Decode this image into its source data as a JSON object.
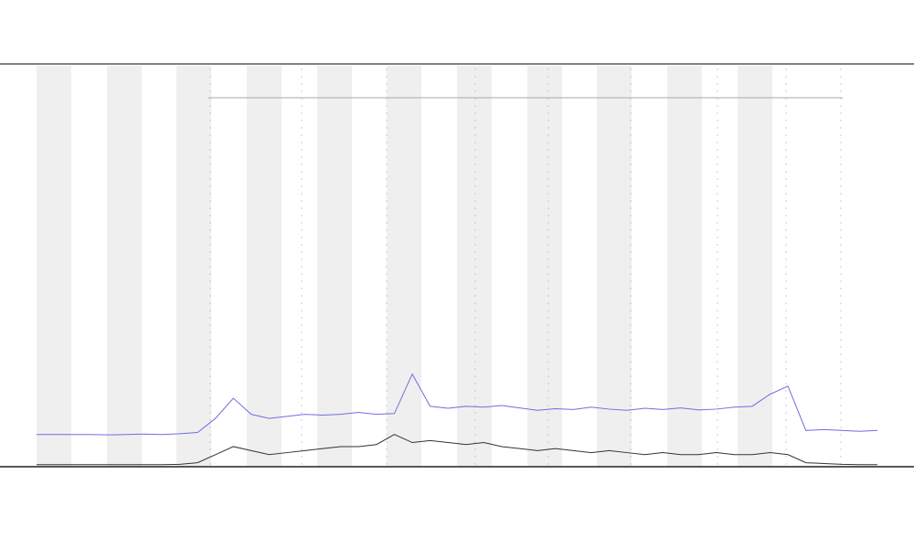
{
  "chart_data": {
    "type": "line",
    "x": [
      0,
      1,
      2,
      3,
      4,
      5,
      6,
      7,
      8,
      9,
      10,
      11,
      12,
      13,
      14,
      15,
      16,
      17,
      18,
      19,
      20,
      21,
      22,
      23,
      24,
      25,
      26,
      27,
      28,
      29,
      30,
      31,
      32,
      33,
      34,
      35,
      36,
      37,
      38,
      39,
      40,
      41,
      42,
      43,
      44,
      45,
      46,
      47
    ],
    "xlim": [
      0,
      47
    ],
    "ylim": [
      0,
      100
    ],
    "series": [
      {
        "color": "#6f6fe0",
        "values": [
          8,
          8,
          8,
          8,
          7.9,
          8,
          8.1,
          8,
          8.2,
          8.5,
          12,
          17,
          13,
          12,
          12.5,
          13,
          12.8,
          13,
          13.5,
          13,
          13.2,
          23,
          15,
          14.5,
          15,
          14.8,
          15.2,
          14.6,
          14,
          14.4,
          14.2,
          14.8,
          14.3,
          14,
          14.5,
          14.2,
          14.6,
          14.1,
          14.3,
          14.8,
          15,
          18,
          20,
          9,
          9.2,
          9,
          8.8,
          9
        ]
      },
      {
        "color": "#333333",
        "values": [
          0.5,
          0.5,
          0.5,
          0.5,
          0.5,
          0.5,
          0.5,
          0.5,
          0.6,
          1,
          3,
          5,
          4,
          3,
          3.5,
          4,
          4.5,
          5,
          5,
          5.5,
          8,
          6,
          6.5,
          6,
          5.5,
          6,
          5,
          4.5,
          4,
          4.5,
          4,
          3.5,
          4,
          3.5,
          3,
          3.5,
          3,
          3,
          3.5,
          3,
          3,
          3.5,
          3,
          1,
          0.8,
          0.6,
          0.5,
          0.5
        ]
      }
    ]
  }
}
